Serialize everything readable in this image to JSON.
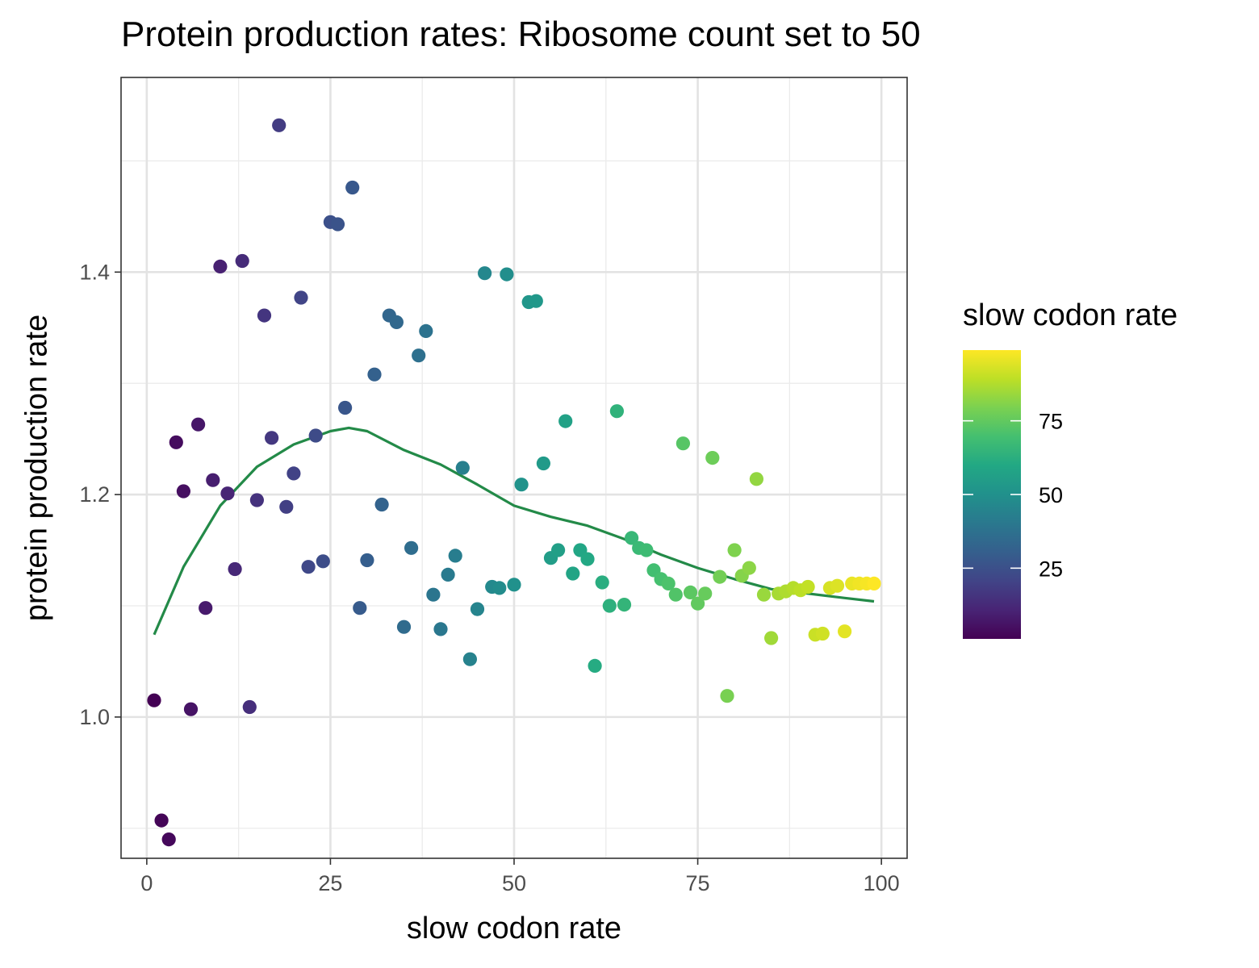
{
  "chart_data": {
    "type": "scatter",
    "title": "Protein production rates: Ribosome count set to 50",
    "xlabel": "slow codon rate",
    "ylabel": "protein production rate",
    "xlim": [
      -3.5,
      103.5
    ],
    "ylim": [
      0.873,
      1.575
    ],
    "x_ticks": [
      0,
      25,
      50,
      75,
      100
    ],
    "y_ticks": [
      1.0,
      1.2,
      1.4
    ],
    "x_tick_labels": [
      "0",
      "25",
      "50",
      "75",
      "100"
    ],
    "y_tick_labels": [
      "1.0",
      "1.2",
      "1.4"
    ],
    "grid": true,
    "color_scale": "viridis",
    "legend": {
      "title": "slow codon rate",
      "placement": "right",
      "range": [
        1,
        99
      ],
      "ticks": [
        25,
        50,
        75
      ],
      "tick_labels": [
        "25",
        "50",
        "75"
      ]
    },
    "points": [
      [
        1,
        1.015
      ],
      [
        2,
        0.907
      ],
      [
        3,
        0.89
      ],
      [
        4,
        1.247
      ],
      [
        5,
        1.203
      ],
      [
        6,
        1.007
      ],
      [
        7,
        1.263
      ],
      [
        8,
        1.098
      ],
      [
        9,
        1.213
      ],
      [
        10,
        1.405
      ],
      [
        11,
        1.201
      ],
      [
        12,
        1.133
      ],
      [
        13,
        1.41
      ],
      [
        14,
        1.009
      ],
      [
        15,
        1.195
      ],
      [
        16,
        1.361
      ],
      [
        17,
        1.251
      ],
      [
        18,
        1.532
      ],
      [
        19,
        1.189
      ],
      [
        20,
        1.219
      ],
      [
        21,
        1.377
      ],
      [
        22,
        1.135
      ],
      [
        23,
        1.253
      ],
      [
        24,
        1.14
      ],
      [
        25,
        1.445
      ],
      [
        26,
        1.443
      ],
      [
        27,
        1.278
      ],
      [
        28,
        1.476
      ],
      [
        29,
        1.098
      ],
      [
        30,
        1.141
      ],
      [
        31,
        1.308
      ],
      [
        32,
        1.191
      ],
      [
        33,
        1.361
      ],
      [
        34,
        1.355
      ],
      [
        35,
        1.081
      ],
      [
        36,
        1.152
      ],
      [
        37,
        1.325
      ],
      [
        38,
        1.347
      ],
      [
        39,
        1.11
      ],
      [
        40,
        1.079
      ],
      [
        41,
        1.128
      ],
      [
        42,
        1.145
      ],
      [
        43,
        1.224
      ],
      [
        44,
        1.052
      ],
      [
        45,
        1.097
      ],
      [
        46,
        1.399
      ],
      [
        47,
        1.117
      ],
      [
        48,
        1.116
      ],
      [
        49,
        1.398
      ],
      [
        50,
        1.119
      ],
      [
        51,
        1.209
      ],
      [
        52,
        1.373
      ],
      [
        53,
        1.374
      ],
      [
        54,
        1.228
      ],
      [
        55,
        1.143
      ],
      [
        56,
        1.15
      ],
      [
        57,
        1.266
      ],
      [
        58,
        1.129
      ],
      [
        59,
        1.15
      ],
      [
        60,
        1.142
      ],
      [
        61,
        1.046
      ],
      [
        62,
        1.121
      ],
      [
        63,
        1.1
      ],
      [
        64,
        1.275
      ],
      [
        65,
        1.101
      ],
      [
        66,
        1.161
      ],
      [
        67,
        1.152
      ],
      [
        68,
        1.15
      ],
      [
        69,
        1.132
      ],
      [
        70,
        1.124
      ],
      [
        71,
        1.12
      ],
      [
        72,
        1.11
      ],
      [
        73,
        1.246
      ],
      [
        74,
        1.112
      ],
      [
        75,
        1.102
      ],
      [
        76,
        1.111
      ],
      [
        77,
        1.233
      ],
      [
        78,
        1.126
      ],
      [
        79,
        1.019
      ],
      [
        80,
        1.15
      ],
      [
        81,
        1.127
      ],
      [
        82,
        1.134
      ],
      [
        83,
        1.214
      ],
      [
        84,
        1.11
      ],
      [
        85,
        1.071
      ],
      [
        86,
        1.111
      ],
      [
        87,
        1.113
      ],
      [
        88,
        1.116
      ],
      [
        89,
        1.114
      ],
      [
        90,
        1.117
      ],
      [
        91,
        1.074
      ],
      [
        92,
        1.075
      ],
      [
        93,
        1.116
      ],
      [
        94,
        1.118
      ],
      [
        95,
        1.077
      ],
      [
        96,
        1.12
      ],
      [
        97,
        1.12
      ],
      [
        98,
        1.12
      ],
      [
        99,
        1.12
      ]
    ],
    "smooth_line": {
      "color": "#238a48",
      "points": [
        [
          1,
          1.074
        ],
        [
          5,
          1.135
        ],
        [
          10,
          1.19
        ],
        [
          15,
          1.225
        ],
        [
          20,
          1.245
        ],
        [
          25,
          1.257
        ],
        [
          27.5,
          1.26
        ],
        [
          30,
          1.257
        ],
        [
          35,
          1.24
        ],
        [
          40,
          1.227
        ],
        [
          45,
          1.209
        ],
        [
          50,
          1.19
        ],
        [
          55,
          1.18
        ],
        [
          60,
          1.172
        ],
        [
          65,
          1.16
        ],
        [
          70,
          1.146
        ],
        [
          75,
          1.134
        ],
        [
          80,
          1.124
        ],
        [
          85,
          1.115
        ],
        [
          90,
          1.111
        ],
        [
          95,
          1.107
        ],
        [
          99,
          1.104
        ]
      ]
    }
  }
}
